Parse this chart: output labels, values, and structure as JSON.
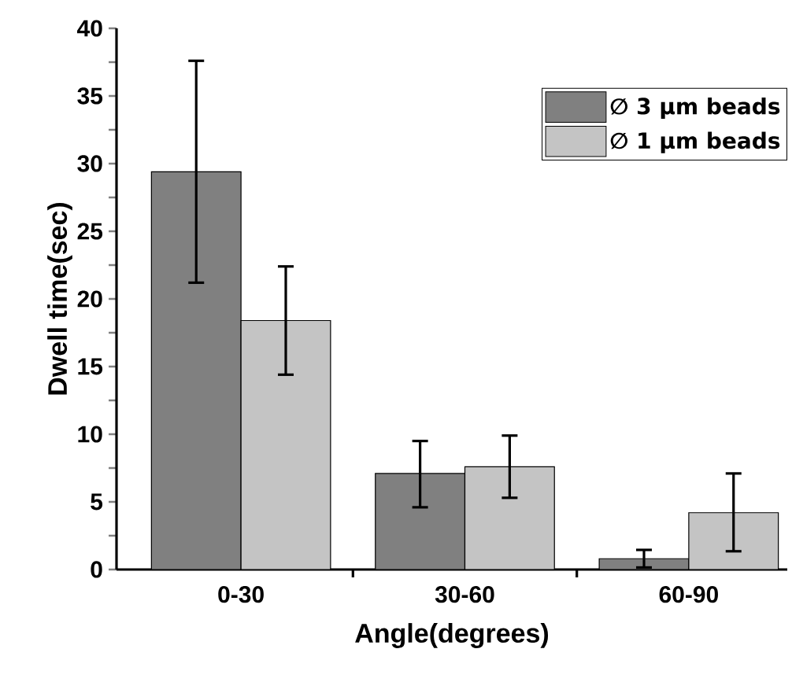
{
  "chart_data": {
    "type": "bar",
    "xlabel": "Angle(degrees)",
    "ylabel": "Dwell time(sec)",
    "categories": [
      "0-30",
      "30-60",
      "60-90"
    ],
    "series": [
      {
        "name": "∅ 3 μm beads",
        "color": "#808080",
        "values": [
          29.4,
          7.1,
          0.8
        ],
        "errors": [
          [
            21.2,
            37.6
          ],
          [
            4.6,
            9.5
          ],
          [
            0.15,
            1.45
          ]
        ]
      },
      {
        "name": "∅ 1 μm beads",
        "color": "#c4c4c4",
        "values": [
          18.4,
          7.6,
          4.2
        ],
        "errors": [
          [
            14.4,
            22.4
          ],
          [
            5.3,
            9.9
          ],
          [
            1.35,
            7.1
          ]
        ]
      }
    ],
    "ylim": [
      0,
      40
    ],
    "yticks": [
      0,
      5,
      10,
      15,
      20,
      25,
      30,
      35,
      40
    ],
    "legend": "top right"
  }
}
